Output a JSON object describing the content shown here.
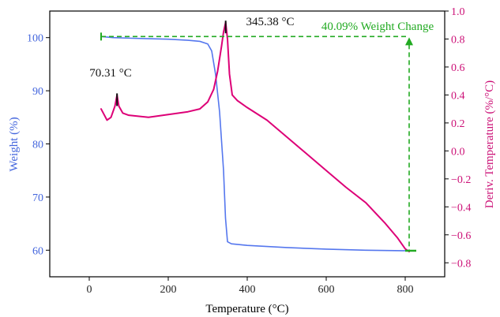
{
  "colors": {
    "weight_axis": "#4466dd",
    "deriv_axis": "#cc1177",
    "weight_curve": "#5577ee",
    "deriv_curve": "#dd0077",
    "annotation_green": "#22aa22",
    "peak_marker": "#111111"
  },
  "chart_data": {
    "type": "line",
    "title": "",
    "xlabel": "Temperature (°C)",
    "ylabel_left": "Weight (%)",
    "ylabel_right": "Deriv. Temperature (%/°C)",
    "xlim": [
      -100,
      900
    ],
    "ylim_left": [
      55,
      105
    ],
    "ylim_right": [
      -0.9,
      1.0
    ],
    "xticks": [
      0,
      200,
      400,
      600,
      800
    ],
    "yticks_left": [
      60,
      70,
      80,
      90,
      100
    ],
    "yticks_right": [
      -0.8,
      -0.6,
      -0.4,
      -0.2,
      0.0,
      0.2,
      0.4,
      0.6,
      0.8,
      1.0
    ],
    "grid": false,
    "series": [
      {
        "axis": "left",
        "x": [
          30,
          60,
          100,
          150,
          200,
          250,
          280,
          300,
          310,
          320,
          330,
          340,
          345,
          350,
          360,
          400,
          500,
          600,
          700,
          800,
          810
        ],
        "y": [
          100.2,
          100.0,
          99.9,
          99.8,
          99.7,
          99.5,
          99.3,
          98.8,
          97.5,
          93.0,
          86.0,
          75.0,
          66.0,
          61.6,
          61.2,
          60.9,
          60.5,
          60.2,
          60.0,
          59.9,
          59.9
        ]
      },
      {
        "axis": "right",
        "x": [
          30,
          45,
          55,
          65,
          70.31,
          75,
          85,
          100,
          150,
          200,
          250,
          280,
          300,
          315,
          325,
          335,
          340,
          345.38,
          350,
          355,
          362,
          375,
          400,
          450,
          500,
          550,
          600,
          650,
          700,
          750,
          780,
          800,
          810
        ],
        "y": [
          0.3,
          0.22,
          0.24,
          0.32,
          0.4,
          0.32,
          0.27,
          0.255,
          0.24,
          0.26,
          0.28,
          0.3,
          0.35,
          0.44,
          0.57,
          0.75,
          0.85,
          0.92,
          0.8,
          0.55,
          0.4,
          0.36,
          0.31,
          0.22,
          0.1,
          -0.02,
          -0.14,
          -0.26,
          -0.37,
          -0.52,
          -0.62,
          -0.7,
          -0.72
        ]
      }
    ],
    "annotations": {
      "peak1": {
        "label": "70.31 °C",
        "x": 70.31,
        "y": 0.4
      },
      "peak2": {
        "label": "345.38 °C",
        "x": 345.38,
        "y": 0.92
      },
      "weight_change": {
        "label": "40.09% Weight Change",
        "x_start": 30,
        "x_end": 810,
        "top_y": 100.2,
        "bottom_y": 59.9
      }
    }
  }
}
